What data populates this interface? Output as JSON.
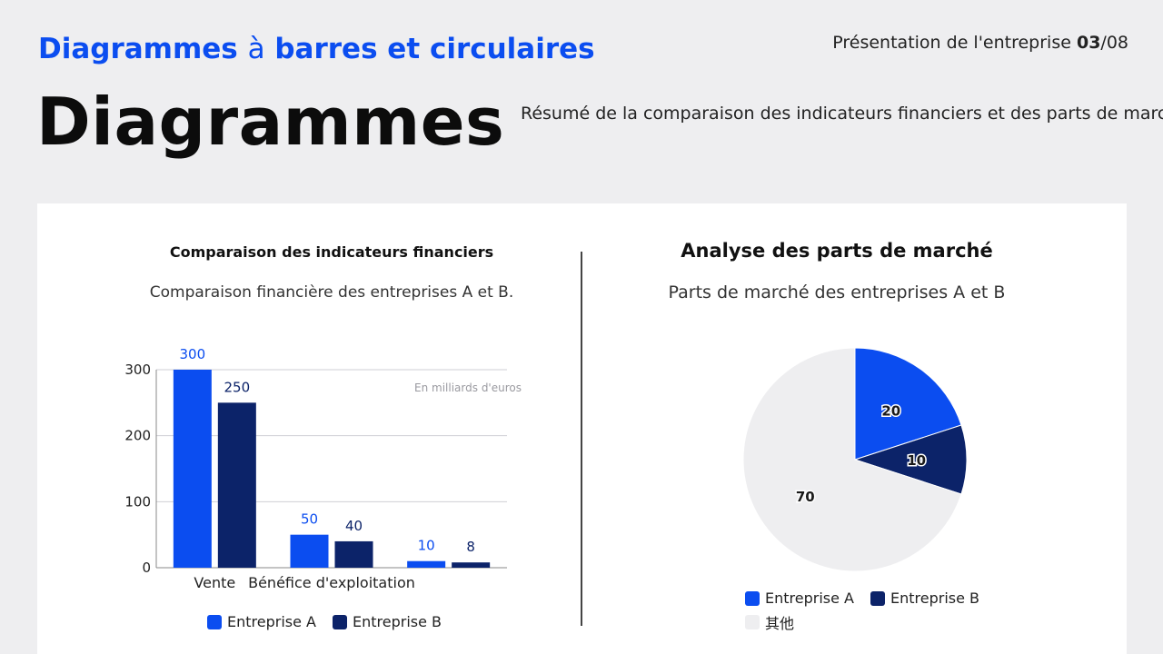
{
  "header": {
    "subtitle_part1": "Diagrammes ",
    "subtitle_part2": "à",
    "subtitle_part3": " barres et circulaires",
    "title": "Diagrammes",
    "pager_text": "Présentation de l'entreprise ",
    "pager_current": "03",
    "pager_total": "/08",
    "summary": "Résumé de la comparaison des indicateurs financiers et des parts de marché"
  },
  "colors": {
    "company_a": "#0b4df0",
    "company_b": "#0c2369",
    "other": "#eeeef0",
    "accent": "#0b4df0"
  },
  "chart_data": [
    {
      "type": "bar",
      "title": "Comparaison des indicateurs financiers",
      "subtitle": "Comparaison financière des entreprises A et B.",
      "annotation": "En milliards d'euros",
      "categories": [
        "Vente",
        "Bénéfice d'exploitation",
        ""
      ],
      "series": [
        {
          "name": "Entreprise A",
          "values": [
            300,
            50,
            10
          ]
        },
        {
          "name": "Entreprise B",
          "values": [
            250,
            40,
            8
          ]
        }
      ],
      "ylim": [
        0,
        300
      ],
      "yticks": [
        0,
        100,
        200,
        300
      ],
      "grid": true,
      "legend": "bottom"
    },
    {
      "type": "pie",
      "title": "Analyse des parts de marché",
      "subtitle": "Parts de marché des entreprises A et B",
      "slices": [
        {
          "label": "Entreprise A",
          "value": 20
        },
        {
          "label": "Entreprise B",
          "value": 10
        },
        {
          "label": "其他",
          "value": 70
        }
      ],
      "legend": "bottom"
    }
  ]
}
